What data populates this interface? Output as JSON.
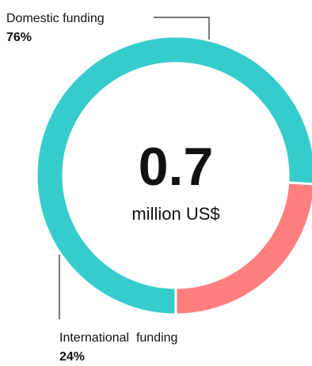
{
  "chart_data": {
    "type": "pie",
    "variant": "donut",
    "center_value": "0.7",
    "center_unit": "million US$",
    "slices": [
      {
        "name": "Domestic funding",
        "percent_label": "76%",
        "value": 76,
        "color": "#36cccc"
      },
      {
        "name": "International  funding",
        "percent_label": "24%",
        "value": 24,
        "color": "#ff7e7e"
      }
    ]
  }
}
